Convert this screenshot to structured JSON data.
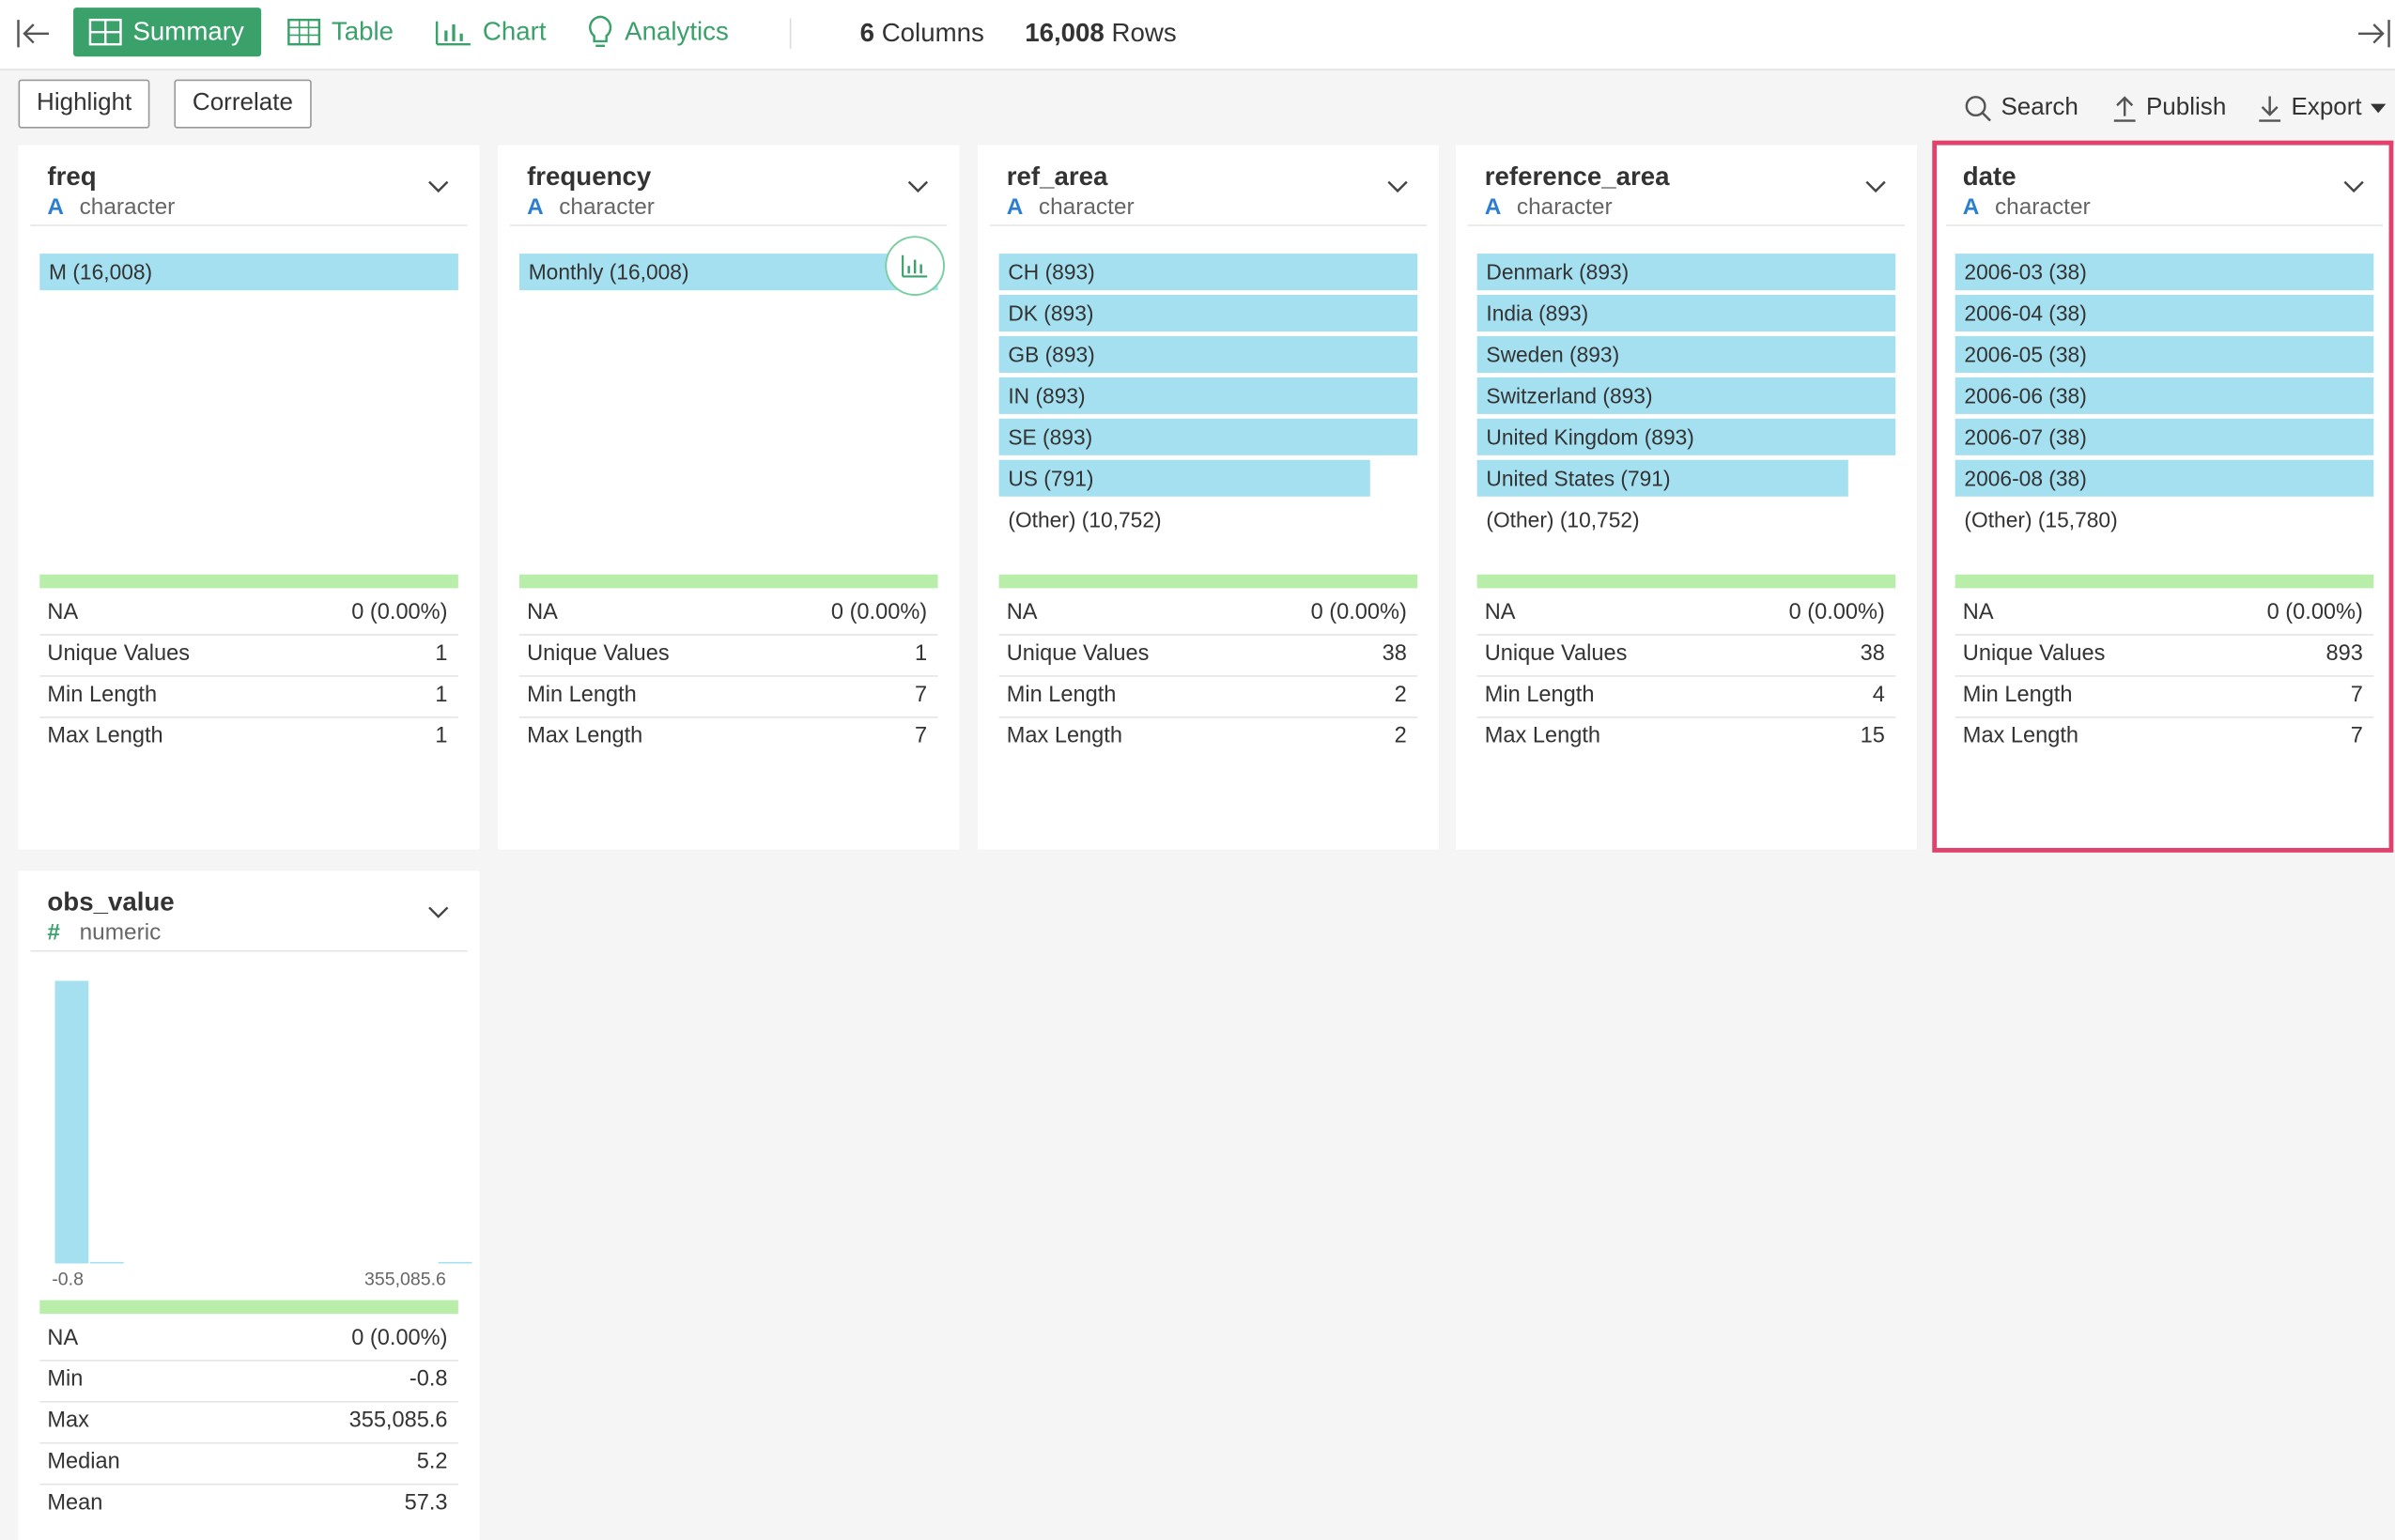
{
  "toolbar": {
    "tabs": [
      "Summary",
      "Table",
      "Chart",
      "Analytics"
    ],
    "columns_count": "6",
    "columns_label": "Columns",
    "rows_count": "16,008",
    "rows_label": "Rows"
  },
  "actions": {
    "left": [
      "Highlight",
      "Correlate"
    ],
    "right": [
      "Search",
      "Publish",
      "Export"
    ]
  },
  "columns": [
    {
      "name": "freq",
      "type_icon": "A",
      "type": "character",
      "top_values": [
        {
          "label": "M (16,008)",
          "count": 16008
        }
      ],
      "stats": [
        {
          "label": "NA",
          "value": "0 (0.00%)"
        },
        {
          "label": "Unique Values",
          "value": "1"
        },
        {
          "label": "Min Length",
          "value": "1"
        },
        {
          "label": "Max Length",
          "value": "1"
        }
      ]
    },
    {
      "name": "frequency",
      "type_icon": "A",
      "type": "character",
      "top_values": [
        {
          "label": "Monthly (16,008)",
          "count": 16008
        }
      ],
      "stats": [
        {
          "label": "NA",
          "value": "0 (0.00%)"
        },
        {
          "label": "Unique Values",
          "value": "1"
        },
        {
          "label": "Min Length",
          "value": "7"
        },
        {
          "label": "Max Length",
          "value": "7"
        }
      ]
    },
    {
      "name": "ref_area",
      "type_icon": "A",
      "type": "character",
      "top_values": [
        {
          "label": "CH (893)",
          "count": 893
        },
        {
          "label": "DK (893)",
          "count": 893
        },
        {
          "label": "GB (893)",
          "count": 893
        },
        {
          "label": "IN (893)",
          "count": 893
        },
        {
          "label": "SE (893)",
          "count": 893
        },
        {
          "label": "US (791)",
          "count": 791
        },
        {
          "label": "(Other) (10,752)"
        }
      ],
      "stats": [
        {
          "label": "NA",
          "value": "0 (0.00%)"
        },
        {
          "label": "Unique Values",
          "value": "38"
        },
        {
          "label": "Min Length",
          "value": "2"
        },
        {
          "label": "Max Length",
          "value": "2"
        }
      ]
    },
    {
      "name": "reference_area",
      "type_icon": "A",
      "type": "character",
      "top_values": [
        {
          "label": "Denmark (893)",
          "count": 893
        },
        {
          "label": "India (893)",
          "count": 893
        },
        {
          "label": "Sweden (893)",
          "count": 893
        },
        {
          "label": "Switzerland (893)",
          "count": 893
        },
        {
          "label": "United Kingdom (893)",
          "count": 893
        },
        {
          "label": "United States (791)",
          "count": 791
        },
        {
          "label": "(Other) (10,752)"
        }
      ],
      "stats": [
        {
          "label": "NA",
          "value": "0 (0.00%)"
        },
        {
          "label": "Unique Values",
          "value": "38"
        },
        {
          "label": "Min Length",
          "value": "4"
        },
        {
          "label": "Max Length",
          "value": "15"
        }
      ]
    },
    {
      "name": "date",
      "type_icon": "A",
      "type": "character",
      "highlighted": true,
      "top_values": [
        {
          "label": "2006-03 (38)",
          "count": 38
        },
        {
          "label": "2006-04 (38)",
          "count": 38
        },
        {
          "label": "2006-05 (38)",
          "count": 38
        },
        {
          "label": "2006-06 (38)",
          "count": 38
        },
        {
          "label": "2006-07 (38)",
          "count": 38
        },
        {
          "label": "2006-08 (38)",
          "count": 38
        },
        {
          "label": "(Other) (15,780)"
        }
      ],
      "stats": [
        {
          "label": "NA",
          "value": "0 (0.00%)"
        },
        {
          "label": "Unique Values",
          "value": "893"
        },
        {
          "label": "Min Length",
          "value": "7"
        },
        {
          "label": "Max Length",
          "value": "7"
        }
      ]
    },
    {
      "name": "obs_value",
      "type_icon": "#",
      "type": "numeric",
      "histogram": {
        "counts": [
          15980,
          12,
          0,
          0,
          0,
          0,
          0,
          0,
          0,
          0,
          0,
          16
        ],
        "min_label": "-0.8",
        "max_label": "355,085.6"
      },
      "stats": [
        {
          "label": "NA",
          "value": "0 (0.00%)"
        },
        {
          "label": "Min",
          "value": "-0.8"
        },
        {
          "label": "Max",
          "value": "355,085.6"
        },
        {
          "label": "Median",
          "value": "5.2"
        },
        {
          "label": "Mean",
          "value": "57.3"
        }
      ]
    }
  ]
}
